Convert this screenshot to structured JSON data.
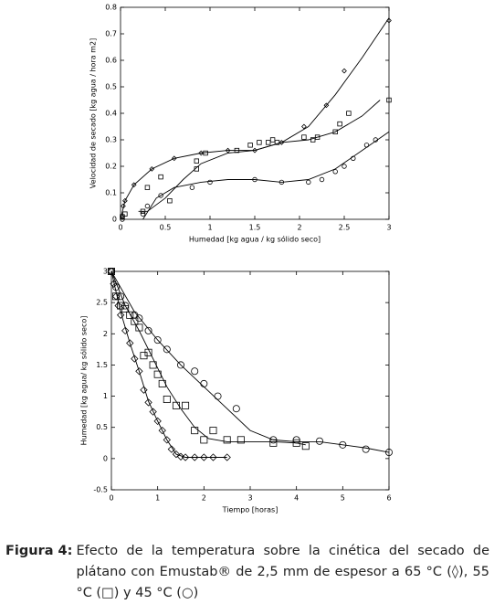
{
  "chart_data": [
    {
      "type": "scatter",
      "xlabel": "Humedad [kg agua / kg sólido seco]",
      "ylabel": "Velocidad de secado [kg agua / hora m2]",
      "xlim": [
        0,
        3
      ],
      "ylim": [
        0,
        0.8
      ],
      "xticks": [
        0,
        0.5,
        1,
        1.5,
        2,
        2.5,
        3
      ],
      "yticks": [
        0,
        0.1,
        0.2,
        0.3,
        0.4,
        0.5,
        0.6,
        0.7,
        0.8
      ],
      "series": [
        {
          "marker": "diamond",
          "color": "#000000",
          "x": [
            0.02,
            0.03,
            0.05,
            0.15,
            0.35,
            0.6,
            0.9,
            1.2,
            1.5,
            1.8,
            2.05,
            2.3,
            2.5,
            3.0
          ],
          "values": [
            0.01,
            0.05,
            0.07,
            0.13,
            0.19,
            0.23,
            0.25,
            0.26,
            0.26,
            0.29,
            0.35,
            0.43,
            0.56,
            0.75
          ],
          "fit_x": [
            0,
            0.05,
            0.15,
            0.35,
            0.6,
            0.9,
            1.2,
            1.5,
            1.8,
            2.1,
            2.4,
            2.7,
            3.0
          ],
          "fit_y": [
            0,
            0.07,
            0.13,
            0.19,
            0.23,
            0.25,
            0.26,
            0.26,
            0.29,
            0.35,
            0.47,
            0.61,
            0.76
          ]
        },
        {
          "marker": "square",
          "color": "#000000",
          "x": [
            0.02,
            0.05,
            0.25,
            0.3,
            0.45,
            0.55,
            0.85,
            0.85,
            0.95,
            1.3,
            1.45,
            1.55,
            1.65,
            1.7,
            1.75,
            2.05,
            2.15,
            2.2,
            2.4,
            2.45,
            2.55,
            3.0
          ],
          "values": [
            0.01,
            0.02,
            0.03,
            0.12,
            0.16,
            0.07,
            0.19,
            0.22,
            0.25,
            0.26,
            0.28,
            0.29,
            0.29,
            0.3,
            0.29,
            0.31,
            0.3,
            0.31,
            0.33,
            0.36,
            0.4,
            0.45
          ],
          "fit_x": [
            0.2,
            0.3,
            0.5,
            0.7,
            0.9,
            1.2,
            1.5,
            1.8,
            2.1,
            2.4,
            2.7,
            2.9
          ],
          "fit_y": [
            0.03,
            0.03,
            0.08,
            0.15,
            0.21,
            0.25,
            0.26,
            0.29,
            0.3,
            0.33,
            0.39,
            0.45
          ]
        },
        {
          "marker": "circle",
          "color": "#000000",
          "x": [
            0.02,
            0.25,
            0.3,
            0.45,
            0.8,
            1.0,
            1.5,
            1.8,
            2.1,
            2.25,
            2.4,
            2.5,
            2.6,
            2.75,
            2.85
          ],
          "values": [
            0,
            0.02,
            0.05,
            0.09,
            0.12,
            0.14,
            0.15,
            0.14,
            0.14,
            0.15,
            0.18,
            0.2,
            0.23,
            0.28,
            0.3
          ],
          "fit_x": [
            0.25,
            0.4,
            0.6,
            0.9,
            1.2,
            1.5,
            1.8,
            2.1,
            2.4,
            2.7,
            3.0
          ],
          "fit_y": [
            0,
            0.08,
            0.12,
            0.14,
            0.15,
            0.15,
            0.14,
            0.15,
            0.19,
            0.26,
            0.33
          ]
        }
      ]
    },
    {
      "type": "scatter",
      "xlabel": "Tiempo [horas]",
      "ylabel": "Humedad [kg agua/ kg sólido seco]",
      "xlim": [
        0,
        6
      ],
      "ylim": [
        -0.5,
        3
      ],
      "xticks": [
        0,
        1,
        2,
        3,
        4,
        5,
        6
      ],
      "yticks": [
        -0.5,
        0,
        0.5,
        1,
        1.5,
        2,
        2.5,
        3
      ],
      "series": [
        {
          "marker": "diamond",
          "color": "#000000",
          "x": [
            0,
            0.05,
            0.1,
            0.15,
            0.2,
            0.3,
            0.4,
            0.5,
            0.6,
            0.7,
            0.8,
            0.9,
            1.0,
            1.1,
            1.2,
            1.3,
            1.4,
            1.5,
            1.6,
            1.8,
            2.0,
            2.2,
            2.5
          ],
          "values": [
            3,
            2.8,
            2.6,
            2.45,
            2.3,
            2.05,
            1.85,
            1.6,
            1.4,
            1.1,
            0.9,
            0.75,
            0.6,
            0.45,
            0.3,
            0.15,
            0.07,
            0.03,
            0.02,
            0.02,
            0.02,
            0.02,
            0.02
          ],
          "fit_x": [
            0,
            0.2,
            0.4,
            0.6,
            0.8,
            1.0,
            1.2,
            1.4,
            1.6,
            2.0,
            2.5
          ],
          "fit_y": [
            3,
            2.35,
            1.85,
            1.4,
            0.92,
            0.6,
            0.3,
            0.07,
            0.02,
            0.02,
            0.02
          ]
        },
        {
          "marker": "square",
          "color": "#000000",
          "x": [
            0,
            0.1,
            0.2,
            0.3,
            0.4,
            0.5,
            0.6,
            0.7,
            0.8,
            0.9,
            1.0,
            1.1,
            1.2,
            1.4,
            1.6,
            1.8,
            2.0,
            2.2,
            2.5,
            2.8,
            3.5,
            4.0,
            4.2
          ],
          "values": [
            3,
            2.6,
            2.45,
            2.4,
            2.3,
            2.2,
            2.1,
            1.65,
            1.7,
            1.5,
            1.35,
            1.2,
            0.95,
            0.85,
            0.85,
            0.45,
            0.3,
            0.45,
            0.3,
            0.3,
            0.25,
            0.25,
            0.2
          ],
          "fit_x": [
            0,
            0.3,
            0.6,
            0.9,
            1.2,
            1.5,
            1.8,
            2.1,
            2.5,
            3,
            3.5,
            4,
            4.2
          ],
          "fit_y": [
            3,
            2.45,
            2.05,
            1.6,
            1.15,
            0.8,
            0.5,
            0.32,
            0.27,
            0.27,
            0.27,
            0.25,
            0.22
          ]
        },
        {
          "marker": "circle",
          "color": "#000000",
          "x": [
            0,
            0.1,
            0.2,
            0.3,
            0.5,
            0.6,
            0.8,
            1.0,
            1.2,
            1.5,
            1.8,
            2.0,
            2.3,
            2.7,
            3.5,
            4.0,
            4.5,
            5.0,
            5.5,
            6.0
          ],
          "values": [
            3,
            2.75,
            2.6,
            2.45,
            2.3,
            2.25,
            2.05,
            1.9,
            1.75,
            1.5,
            1.4,
            1.2,
            1.0,
            0.8,
            0.3,
            0.3,
            0.28,
            0.22,
            0.15,
            0.1
          ],
          "fit_x": [
            0,
            0.5,
            1,
            1.5,
            2,
            2.5,
            3,
            3.5,
            4,
            4.5,
            5,
            5.5,
            6
          ],
          "fit_y": [
            3,
            2.35,
            1.9,
            1.5,
            1.15,
            0.8,
            0.45,
            0.3,
            0.27,
            0.27,
            0.22,
            0.17,
            0.1
          ]
        }
      ]
    }
  ],
  "caption": {
    "label": "Figura 4:",
    "text": "Efecto de la temperatura sobre la cinética del secado de plátano con Emustab® de 2,5 mm de espesor a 65 °C (◊), 55 °C (□) y 45 °C (○)"
  }
}
